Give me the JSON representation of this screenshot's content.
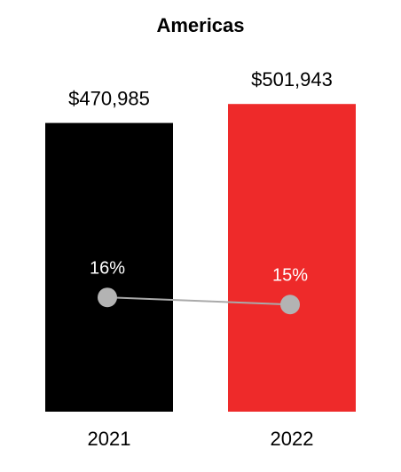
{
  "chart_data": {
    "type": "bar",
    "title": "Americas",
    "categories": [
      "2021",
      "2022"
    ],
    "series": [
      {
        "type": "bar",
        "colors": [
          "#000000",
          "#ee2a2a"
        ],
        "values": [
          470985,
          501943
        ],
        "value_labels": [
          "$470,985",
          "$501,943"
        ]
      },
      {
        "type": "line",
        "axis": "y2",
        "color": "#aaaaaa",
        "values": [
          16,
          15
        ],
        "value_labels": [
          "16%",
          "15%"
        ]
      }
    ],
    "ylim": [
      0,
      550000
    ],
    "y2lim": [
      0,
      20
    ]
  }
}
